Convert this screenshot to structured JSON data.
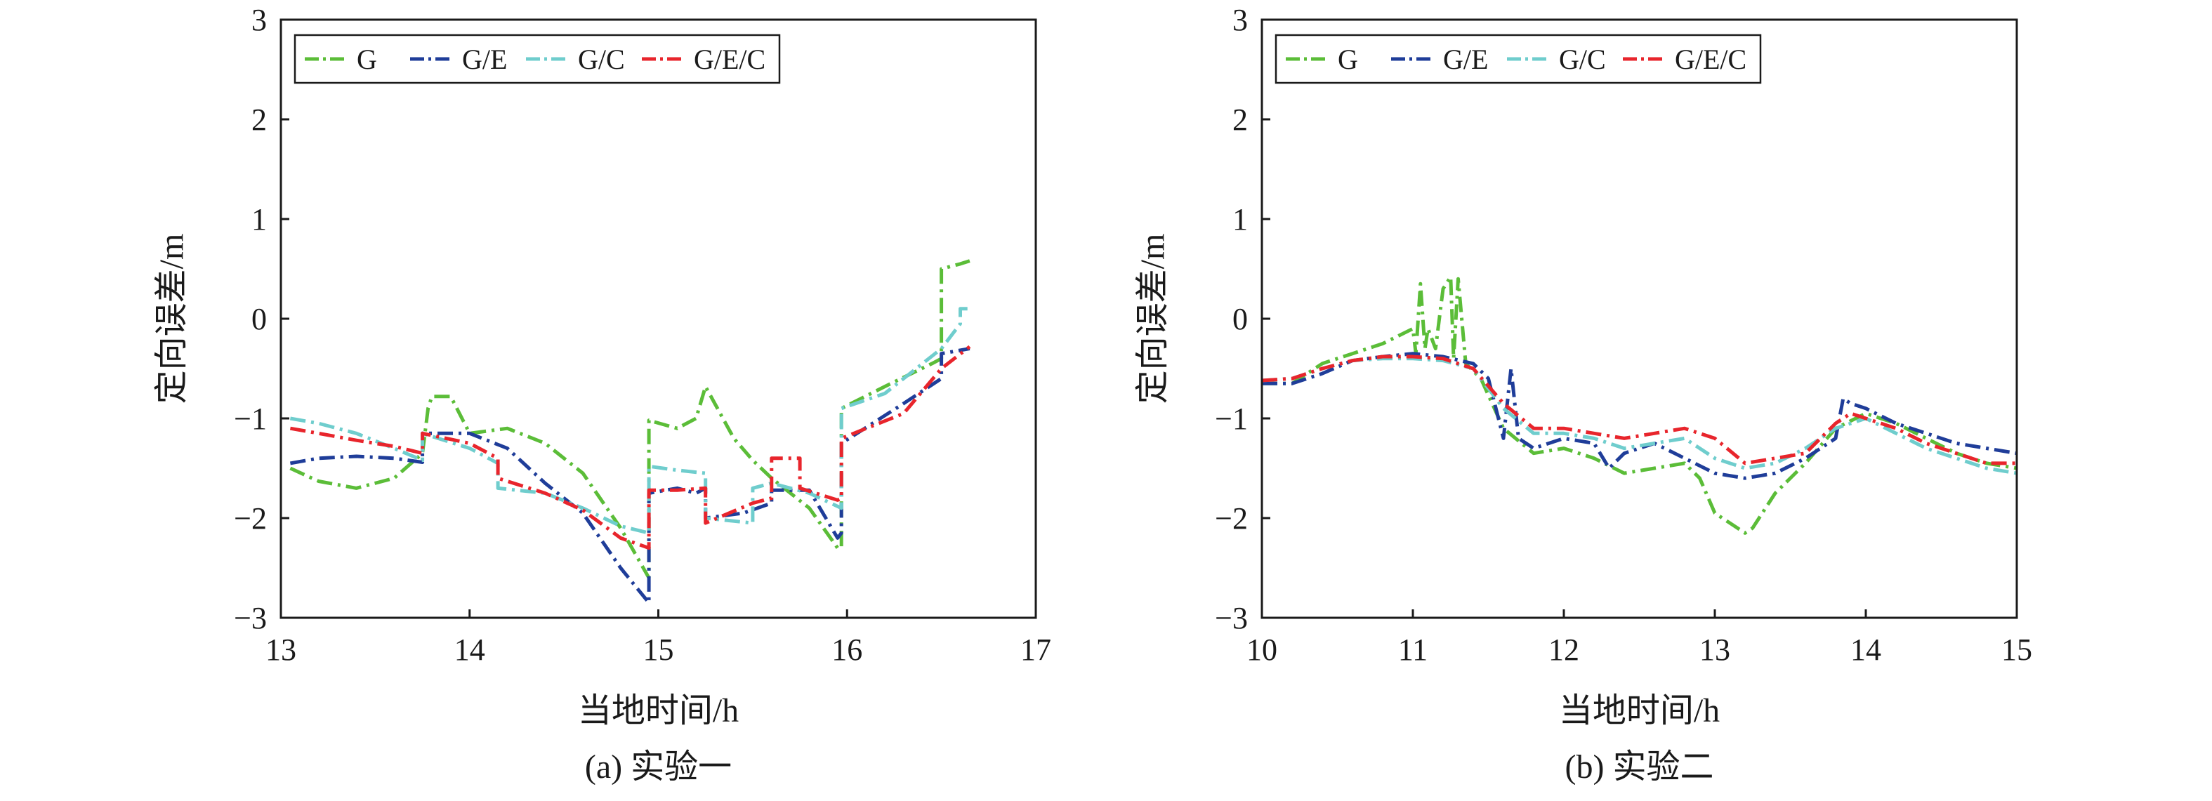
{
  "chart_data": [
    {
      "type": "line",
      "caption": "(a) 实验一",
      "xlabel": "当地时间/h",
      "ylabel": "定向误差/m",
      "xlim": [
        13,
        17
      ],
      "ylim": [
        -3,
        3
      ],
      "xticks": [
        13,
        14,
        15,
        16,
        17
      ],
      "yticks": [
        3,
        2,
        1,
        0,
        -1,
        -2,
        -3
      ],
      "ytick_labels": [
        "3",
        "2",
        "1",
        "0",
        "−1",
        "−2",
        "−3"
      ],
      "grid": false,
      "legend_position": "top-left",
      "series": [
        {
          "name": "G",
          "color": "#5bbd38",
          "dash": "22 8 4 8",
          "x": [
            13.05,
            13.2,
            13.4,
            13.6,
            13.75,
            13.78,
            13.8,
            13.9,
            14.0,
            14.2,
            14.4,
            14.6,
            14.8,
            14.95,
            14.95,
            15.1,
            15.2,
            15.25,
            15.4,
            15.5,
            15.6,
            15.8,
            15.95,
            15.97,
            15.97,
            16.2,
            16.45,
            16.5,
            16.5,
            16.6,
            16.65
          ],
          "y": [
            -1.5,
            -1.63,
            -1.7,
            -1.6,
            -1.35,
            -0.9,
            -0.78,
            -0.78,
            -1.15,
            -1.1,
            -1.25,
            -1.55,
            -2.1,
            -2.6,
            -1.02,
            -1.1,
            -1.0,
            -0.68,
            -1.2,
            -1.42,
            -1.6,
            -1.9,
            -2.3,
            -2.3,
            -0.9,
            -0.68,
            -0.45,
            -0.4,
            0.5,
            0.55,
            0.58
          ]
        },
        {
          "name": "G/E",
          "color": "#1f3d99",
          "dash": "22 8 4 8",
          "x": [
            13.05,
            13.2,
            13.4,
            13.6,
            13.75,
            13.75,
            14.0,
            14.2,
            14.4,
            14.6,
            14.8,
            14.95,
            14.95,
            15.1,
            15.2,
            15.25,
            15.25,
            15.45,
            15.6,
            15.6,
            15.8,
            15.95,
            15.97,
            15.97,
            16.3,
            16.5,
            16.5,
            16.65
          ],
          "y": [
            -1.45,
            -1.4,
            -1.38,
            -1.4,
            -1.44,
            -1.15,
            -1.15,
            -1.3,
            -1.65,
            -1.95,
            -2.5,
            -2.85,
            -1.75,
            -1.7,
            -1.75,
            -1.7,
            -2.0,
            -1.95,
            -1.85,
            -1.72,
            -1.72,
            -2.2,
            -2.15,
            -1.25,
            -0.85,
            -0.6,
            -0.35,
            -0.3
          ]
        },
        {
          "name": "G/C",
          "color": "#6fcdcd",
          "dash": "22 8 4 8",
          "x": [
            13.05,
            13.2,
            13.4,
            13.6,
            13.75,
            13.75,
            14.0,
            14.15,
            14.15,
            14.4,
            14.6,
            14.8,
            14.95,
            14.95,
            15.1,
            15.25,
            15.25,
            15.5,
            15.5,
            15.6,
            15.8,
            15.97,
            15.97,
            16.2,
            16.5,
            16.6,
            16.6,
            16.65
          ],
          "y": [
            -1.0,
            -1.05,
            -1.15,
            -1.3,
            -1.42,
            -1.15,
            -1.3,
            -1.45,
            -1.7,
            -1.75,
            -1.9,
            -2.08,
            -2.15,
            -1.48,
            -1.52,
            -1.55,
            -2.0,
            -2.05,
            -1.7,
            -1.65,
            -1.75,
            -1.9,
            -0.9,
            -0.75,
            -0.3,
            -0.05,
            0.1,
            0.1
          ]
        },
        {
          "name": "G/E/C",
          "color": "#e8252c",
          "dash": "22 8 4 8",
          "x": [
            13.05,
            13.2,
            13.4,
            13.6,
            13.75,
            13.75,
            14.0,
            14.15,
            14.15,
            14.4,
            14.6,
            14.8,
            14.95,
            14.95,
            15.1,
            15.25,
            15.25,
            15.5,
            15.6,
            15.6,
            15.75,
            15.75,
            15.95,
            15.97,
            15.97,
            16.3,
            16.5,
            16.65
          ],
          "y": [
            -1.1,
            -1.15,
            -1.22,
            -1.28,
            -1.35,
            -1.15,
            -1.25,
            -1.4,
            -1.6,
            -1.75,
            -1.92,
            -2.2,
            -2.3,
            -1.72,
            -1.72,
            -1.7,
            -2.05,
            -1.85,
            -1.8,
            -1.4,
            -1.4,
            -1.7,
            -1.82,
            -1.8,
            -1.2,
            -0.95,
            -0.5,
            -0.28
          ]
        }
      ]
    },
    {
      "type": "line",
      "caption": "(b) 实验二",
      "xlabel": "当地时间/h",
      "ylabel": "定向误差/m",
      "xlim": [
        10,
        15
      ],
      "ylim": [
        -3,
        3
      ],
      "xticks": [
        10,
        11,
        12,
        13,
        14,
        15
      ],
      "yticks": [
        3,
        2,
        1,
        0,
        -1,
        -2,
        -3
      ],
      "ytick_labels": [
        "3",
        "2",
        "1",
        "0",
        "−1",
        "−2",
        "−3"
      ],
      "grid": false,
      "legend_position": "top-left",
      "series": [
        {
          "name": "G",
          "color": "#5bbd38",
          "dash": "22 8 4 8",
          "x": [
            10.0,
            10.2,
            10.4,
            10.6,
            10.8,
            11.0,
            11.02,
            11.05,
            11.08,
            11.1,
            11.15,
            11.2,
            11.25,
            11.27,
            11.3,
            11.35,
            11.45,
            11.6,
            11.8,
            12.0,
            12.2,
            12.4,
            12.6,
            12.8,
            12.9,
            13.0,
            13.1,
            13.2,
            13.25,
            13.4,
            13.6,
            13.8,
            14.0,
            14.2,
            14.4,
            14.6,
            14.8,
            15.0
          ],
          "y": [
            -0.65,
            -0.65,
            -0.45,
            -0.35,
            -0.25,
            -0.1,
            -0.35,
            0.35,
            -0.3,
            -0.1,
            -0.3,
            0.3,
            0.42,
            -0.4,
            0.4,
            -0.45,
            -0.6,
            -1.1,
            -1.35,
            -1.3,
            -1.4,
            -1.55,
            -1.5,
            -1.45,
            -1.6,
            -1.95,
            -2.05,
            -2.15,
            -2.1,
            -1.75,
            -1.45,
            -1.1,
            -0.95,
            -1.05,
            -1.2,
            -1.35,
            -1.45,
            -1.5
          ]
        },
        {
          "name": "G/E",
          "color": "#1f3d99",
          "dash": "22 8 4 8",
          "x": [
            10.0,
            10.2,
            10.4,
            10.6,
            10.8,
            11.0,
            11.2,
            11.4,
            11.5,
            11.6,
            11.65,
            11.7,
            11.8,
            12.0,
            12.2,
            12.3,
            12.4,
            12.6,
            12.8,
            13.0,
            13.2,
            13.4,
            13.6,
            13.8,
            13.85,
            13.9,
            14.0,
            14.2,
            14.4,
            14.6,
            14.8,
            15.0
          ],
          "y": [
            -0.65,
            -0.65,
            -0.55,
            -0.42,
            -0.38,
            -0.35,
            -0.38,
            -0.45,
            -0.6,
            -1.2,
            -0.5,
            -1.2,
            -1.3,
            -1.2,
            -1.25,
            -1.5,
            -1.35,
            -1.25,
            -1.4,
            -1.55,
            -1.6,
            -1.55,
            -1.4,
            -1.2,
            -0.8,
            -0.85,
            -0.9,
            -1.05,
            -1.15,
            -1.25,
            -1.3,
            -1.35
          ]
        },
        {
          "name": "G/C",
          "color": "#6fcdcd",
          "dash": "22 8 4 8",
          "x": [
            10.0,
            10.2,
            10.4,
            10.6,
            10.8,
            11.0,
            11.2,
            11.4,
            11.6,
            11.8,
            12.0,
            12.2,
            12.4,
            12.6,
            12.8,
            13.0,
            13.2,
            13.4,
            13.6,
            13.8,
            14.0,
            14.2,
            14.4,
            14.6,
            14.8,
            15.0
          ],
          "y": [
            -0.62,
            -0.6,
            -0.5,
            -0.42,
            -0.4,
            -0.4,
            -0.42,
            -0.5,
            -0.9,
            -1.15,
            -1.15,
            -1.2,
            -1.3,
            -1.25,
            -1.2,
            -1.4,
            -1.5,
            -1.45,
            -1.3,
            -1.1,
            -1.0,
            -1.15,
            -1.3,
            -1.4,
            -1.5,
            -1.55
          ]
        },
        {
          "name": "G/E/C",
          "color": "#e8252c",
          "dash": "22 8 4 8",
          "x": [
            10.0,
            10.2,
            10.4,
            10.6,
            10.8,
            11.0,
            11.2,
            11.4,
            11.6,
            11.8,
            12.0,
            12.2,
            12.4,
            12.6,
            12.8,
            13.0,
            13.2,
            13.4,
            13.6,
            13.8,
            13.9,
            14.0,
            14.2,
            14.4,
            14.6,
            14.8,
            15.0
          ],
          "y": [
            -0.62,
            -0.6,
            -0.5,
            -0.42,
            -0.38,
            -0.38,
            -0.4,
            -0.5,
            -0.85,
            -1.1,
            -1.1,
            -1.15,
            -1.2,
            -1.15,
            -1.1,
            -1.2,
            -1.45,
            -1.4,
            -1.35,
            -1.05,
            -0.95,
            -1.0,
            -1.1,
            -1.25,
            -1.35,
            -1.45,
            -1.45
          ]
        }
      ]
    }
  ]
}
